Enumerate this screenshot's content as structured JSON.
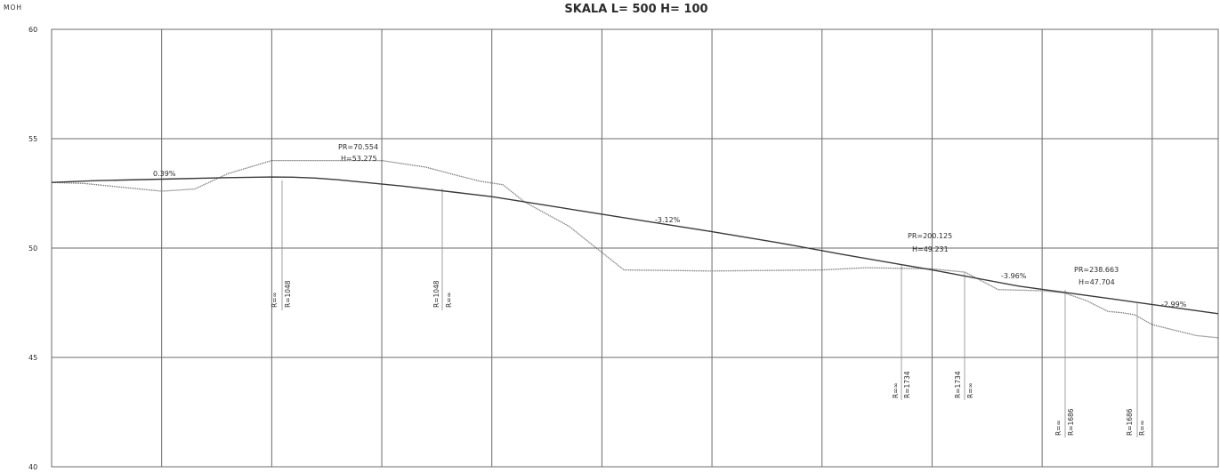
{
  "header": {
    "unit_label": "MOH",
    "scale_label": "SKALA L= 500 H= 100"
  },
  "y_axis": {
    "ticks": [
      "60",
      "55",
      "50",
      "45",
      "40"
    ],
    "values": [
      60,
      55,
      50,
      45,
      40
    ],
    "min": 40,
    "max": 60
  },
  "x_axis": {
    "min": 0,
    "max": 530,
    "grid_stations": [
      0,
      50,
      100,
      150,
      200,
      250,
      300,
      350,
      400,
      450,
      500
    ]
  },
  "grades": [
    {
      "text": "0.39%"
    },
    {
      "text": "-3.12%"
    },
    {
      "text": "-3.96%"
    },
    {
      "text": "-2.99%"
    }
  ],
  "vertical_points": [
    {
      "pr": "PR=70.554",
      "h": "H=53.275"
    },
    {
      "pr": "PR=200.125",
      "h": "H=49.231"
    },
    {
      "pr": "PR=238.663",
      "h": "H=47.704"
    }
  ],
  "radius_marks": [
    {
      "lines": [
        "R=∞",
        "R=1048"
      ]
    },
    {
      "lines": [
        "R=1048",
        "R=∞"
      ]
    },
    {
      "lines": [
        "R=∞",
        "R=1734"
      ]
    },
    {
      "lines": [
        "R=1734",
        "R=∞"
      ]
    },
    {
      "lines": [
        "R=∞",
        "R=1686"
      ]
    },
    {
      "lines": [
        "R=1686",
        "R=∞"
      ]
    }
  ],
  "chart_data": {
    "type": "line",
    "title": "SKALA L= 500 H= 100",
    "ylabel": "MOH",
    "xlabel": "",
    "ylim": [
      40,
      60
    ],
    "xlim": [
      0,
      530
    ],
    "grid": true,
    "series": [
      {
        "line": "design",
        "x": [
          0,
          20,
          50,
          80,
          100,
          110,
          120,
          130,
          160,
          200,
          250,
          300,
          330,
          360,
          400,
          440,
          480,
          530
        ],
        "y": [
          53.0,
          53.08,
          53.15,
          53.22,
          53.25,
          53.24,
          53.2,
          53.12,
          52.83,
          52.35,
          51.55,
          50.75,
          50.25,
          49.7,
          49.0,
          48.25,
          47.7,
          47.0
        ]
      },
      {
        "line": "existing",
        "x": [
          0,
          15,
          30,
          50,
          65,
          80,
          100,
          110,
          120,
          150,
          170,
          185,
          195,
          205,
          215,
          235,
          260,
          300,
          350,
          370,
          400,
          415,
          430,
          450,
          460,
          470,
          480,
          486,
          492,
          500,
          510,
          520,
          530
        ],
        "y": [
          53.0,
          52.95,
          52.8,
          52.6,
          52.7,
          53.4,
          54.0,
          54.0,
          54.0,
          54.0,
          53.7,
          53.3,
          53.05,
          52.9,
          52.1,
          51.0,
          49.0,
          48.95,
          49.0,
          49.1,
          49.05,
          48.9,
          48.1,
          48.05,
          47.95,
          47.6,
          47.1,
          47.05,
          46.95,
          46.5,
          46.25,
          46.0,
          45.9
        ]
      }
    ]
  }
}
